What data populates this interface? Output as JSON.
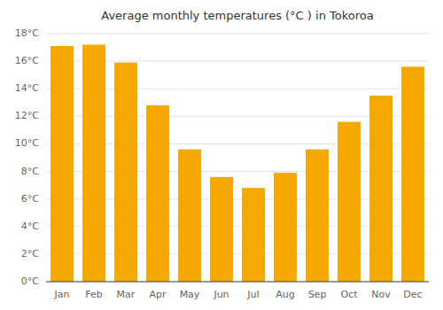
{
  "chart_data": {
    "type": "bar",
    "title": "Average monthly temperatures (°C ) in Tokoroa",
    "categories": [
      "Jan",
      "Feb",
      "Mar",
      "Apr",
      "May",
      "Jun",
      "Jul",
      "Aug",
      "Sep",
      "Oct",
      "Nov",
      "Dec"
    ],
    "values": [
      17.1,
      17.2,
      15.9,
      12.8,
      9.6,
      7.6,
      6.8,
      7.9,
      9.6,
      11.6,
      13.5,
      15.6
    ],
    "color": "#F5A800",
    "ylim": [
      0,
      18
    ],
    "yticks": [
      {
        "value": 0,
        "label": "0°C"
      },
      {
        "value": 2,
        "label": "2°C"
      },
      {
        "value": 4,
        "label": "4°C"
      },
      {
        "value": 6,
        "label": "6°C"
      },
      {
        "value": 8,
        "label": "8°C"
      },
      {
        "value": 10,
        "label": "10°C"
      },
      {
        "value": 12,
        "label": "12°C"
      },
      {
        "value": 14,
        "label": "14°C"
      },
      {
        "value": 16,
        "label": "16°C"
      },
      {
        "value": 18,
        "label": "18°C"
      }
    ],
    "grid": true
  }
}
